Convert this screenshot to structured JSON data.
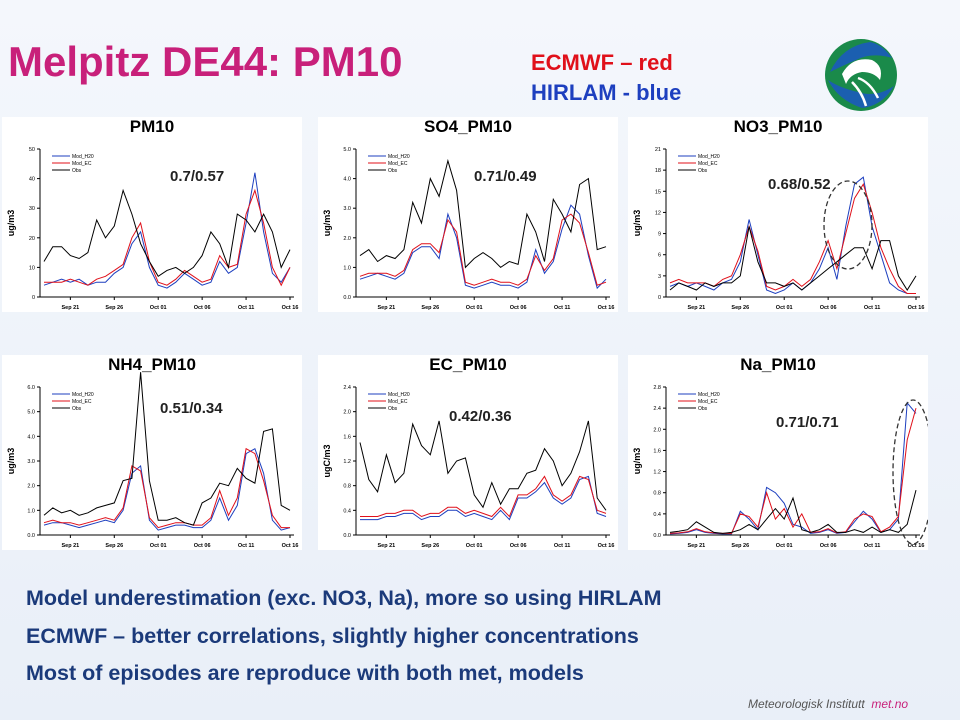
{
  "title": "Melpitz DE44: PM10",
  "legend_note": {
    "red": "ECMWF – red",
    "blue": "HIRLAM - blue"
  },
  "summary": [
    "Model underestimation (exc. NO3, Na), more so using HIRLAM",
    "ECMWF – better correlations, slightly higher concentrations",
    "Most of episodes are reproduce with both met, models"
  ],
  "footer": {
    "org": "Meteorologisk Institutt",
    "site": "met.no"
  },
  "colors": {
    "ecmwf": "#e0101a",
    "hirlam": "#1d3fbf",
    "obs": "#000000",
    "title": "#c8207a"
  },
  "chart_data": [
    {
      "type": "line",
      "title": "PM10",
      "ylabel": "ug/m3",
      "ylim": [
        0,
        50
      ],
      "yticks": [
        "0",
        "10",
        "20",
        "30",
        "40",
        "50"
      ],
      "xticks": [
        "Sep 21",
        "Sep 26",
        "Oct 01",
        "Oct 06",
        "Oct 11",
        "Oct 16"
      ],
      "corr": "0.7/0.57",
      "legend": [
        "Mod_H20",
        "Mod_EC",
        "Obs"
      ],
      "series": [
        {
          "name": "Mod_H20",
          "values": [
            4,
            5,
            6,
            5,
            6,
            4,
            5,
            5,
            8,
            10,
            18,
            22,
            10,
            4,
            3,
            5,
            8,
            6,
            4,
            5,
            12,
            8,
            10,
            25,
            42,
            22,
            8,
            5,
            10
          ]
        },
        {
          "name": "Mod_EC",
          "values": [
            5,
            5,
            5,
            6,
            5,
            4,
            6,
            7,
            9,
            11,
            20,
            25,
            12,
            5,
            4,
            6,
            9,
            7,
            5,
            6,
            14,
            10,
            11,
            28,
            36,
            25,
            10,
            4,
            10
          ]
        },
        {
          "name": "Obs",
          "values": [
            12,
            17,
            17,
            14,
            13,
            15,
            26,
            20,
            24,
            36,
            28,
            18,
            12,
            7,
            9,
            10,
            8,
            10,
            14,
            22,
            18,
            10,
            28,
            26,
            22,
            28,
            22,
            10,
            16
          ]
        }
      ]
    },
    {
      "type": "line",
      "title": "SO4_PM10",
      "ylabel": "ug/m3",
      "ylim": [
        0,
        5
      ],
      "yticks": [
        "0.0",
        "1.0",
        "2.0",
        "3.0",
        "4.0",
        "5.0"
      ],
      "xticks": [
        "Sep 21",
        "Sep 26",
        "Oct 01",
        "Oct 06",
        "Oct 11",
        "Oct 16"
      ],
      "corr": "0.71/0.49",
      "legend": [
        "Mod_H20",
        "Mod_EC",
        "Obs"
      ],
      "series": [
        {
          "name": "Mod_H20",
          "values": [
            0.6,
            0.7,
            0.8,
            0.7,
            0.6,
            0.8,
            1.5,
            1.7,
            1.7,
            1.3,
            2.8,
            2.0,
            0.4,
            0.3,
            0.4,
            0.5,
            0.4,
            0.4,
            0.3,
            0.5,
            1.6,
            0.8,
            1.2,
            2.3,
            3.1,
            2.8,
            1.4,
            0.3,
            0.6
          ]
        },
        {
          "name": "Mod_EC",
          "values": [
            0.7,
            0.8,
            0.8,
            0.8,
            0.7,
            0.9,
            1.6,
            1.8,
            1.8,
            1.5,
            2.6,
            2.2,
            0.5,
            0.4,
            0.5,
            0.6,
            0.5,
            0.5,
            0.4,
            0.6,
            1.4,
            0.9,
            1.3,
            2.6,
            2.8,
            2.5,
            1.5,
            0.4,
            0.5
          ]
        },
        {
          "name": "Obs",
          "values": [
            1.4,
            1.6,
            1.2,
            1.4,
            1.3,
            1.6,
            3.2,
            2.5,
            4.0,
            3.4,
            4.6,
            3.6,
            1.0,
            1.3,
            1.5,
            1.3,
            1.0,
            1.2,
            1.1,
            2.8,
            2.2,
            1.2,
            3.3,
            2.8,
            2.2,
            3.8,
            4.0,
            1.6,
            1.7
          ]
        }
      ]
    },
    {
      "type": "line",
      "title": "NO3_PM10",
      "ylabel": "ug/m3",
      "ylim": [
        0,
        21
      ],
      "yticks": [
        "0",
        "3",
        "6",
        "9",
        "12",
        "15",
        "18",
        "21"
      ],
      "xticks": [
        "Sep 21",
        "Sep 26",
        "Oct 01",
        "Oct 06",
        "Oct 11",
        "Oct 16"
      ],
      "corr": "0.68/0.52",
      "legend": [
        "Mod_H20",
        "Mod_EC",
        "Obs"
      ],
      "series": [
        {
          "name": "Mod_H20",
          "values": [
            1.5,
            2,
            1.5,
            2,
            1.5,
            1,
            2,
            2.5,
            5,
            11,
            6,
            1,
            0.5,
            1,
            2,
            1,
            2,
            4,
            7,
            2.5,
            10,
            16,
            17,
            10,
            6,
            2,
            1,
            0.5,
            0.5
          ]
        },
        {
          "name": "Mod_EC",
          "values": [
            2,
            2.5,
            2,
            2,
            2,
            1.5,
            2.5,
            3,
            6,
            10,
            6.5,
            1.5,
            1,
            1.5,
            2.5,
            1.5,
            2.5,
            5,
            8,
            4,
            9,
            14,
            16,
            12,
            7,
            4,
            1.5,
            0.5,
            0.5
          ]
        },
        {
          "name": "Obs",
          "values": [
            1,
            2,
            1.5,
            1,
            2,
            1.5,
            2,
            2,
            3,
            10,
            5,
            2,
            2,
            1.5,
            2,
            1,
            2,
            3,
            4,
            5,
            6,
            7,
            7,
            4,
            8,
            8,
            3,
            1,
            3
          ]
        }
      ]
    },
    {
      "type": "line",
      "title": "NH4_PM10",
      "ylabel": "ug/m3",
      "ylim": [
        0,
        6
      ],
      "yticks": [
        "0.0",
        "1.0",
        "2.0",
        "3.0",
        "4.0",
        "5.0",
        "6.0"
      ],
      "xticks": [
        "Sep 21",
        "Sep 26",
        "Oct 01",
        "Oct 06",
        "Oct 11",
        "Oct 16"
      ],
      "corr": "0.51/0.34",
      "legend": [
        "Mod_H20",
        "Mod_EC",
        "Obs"
      ],
      "series": [
        {
          "name": "Mod_H20",
          "values": [
            0.4,
            0.5,
            0.5,
            0.4,
            0.3,
            0.4,
            0.5,
            0.6,
            0.5,
            1.0,
            2.5,
            2.8,
            0.6,
            0.2,
            0.3,
            0.4,
            0.4,
            0.3,
            0.3,
            0.6,
            1.5,
            0.6,
            1.2,
            3.3,
            3.5,
            2.5,
            0.6,
            0.2,
            0.3
          ]
        },
        {
          "name": "Mod_EC",
          "values": [
            0.5,
            0.6,
            0.5,
            0.5,
            0.4,
            0.5,
            0.6,
            0.7,
            0.6,
            1.1,
            2.8,
            2.6,
            0.7,
            0.3,
            0.4,
            0.5,
            0.5,
            0.4,
            0.4,
            0.7,
            1.8,
            0.8,
            1.5,
            3.5,
            3.3,
            2.2,
            0.8,
            0.3,
            0.3
          ]
        },
        {
          "name": "Obs",
          "values": [
            0.8,
            1.1,
            0.9,
            1.0,
            0.8,
            0.9,
            1.1,
            1.2,
            1.3,
            2.2,
            2.3,
            6.6,
            2.2,
            0.6,
            0.6,
            0.7,
            0.5,
            0.4,
            1.3,
            1.5,
            2.1,
            2.0,
            2.7,
            2.3,
            2.1,
            4.2,
            4.3,
            1.2,
            1.0
          ]
        }
      ]
    },
    {
      "type": "line",
      "title": "EC_PM10",
      "ylabel": "ugC/m3",
      "ylim": [
        0,
        2.4
      ],
      "yticks": [
        "0.0",
        "0.4",
        "0.8",
        "1.2",
        "1.6",
        "2.0",
        "2.4"
      ],
      "xticks": [
        "Sep 21",
        "Sep 26",
        "Oct 01",
        "Oct 06",
        "Oct 11",
        "Oct 16"
      ],
      "corr": "0.42/0.36",
      "legend": [
        "Mod_H20",
        "Mod_EC",
        "Obs"
      ],
      "series": [
        {
          "name": "Mod_H20",
          "values": [
            0.25,
            0.25,
            0.25,
            0.3,
            0.3,
            0.35,
            0.35,
            0.25,
            0.3,
            0.3,
            0.4,
            0.4,
            0.3,
            0.35,
            0.3,
            0.25,
            0.4,
            0.25,
            0.6,
            0.6,
            0.7,
            0.85,
            0.6,
            0.5,
            0.6,
            0.9,
            0.95,
            0.35,
            0.3
          ]
        },
        {
          "name": "Mod_EC",
          "values": [
            0.3,
            0.3,
            0.3,
            0.35,
            0.35,
            0.4,
            0.4,
            0.3,
            0.35,
            0.35,
            0.45,
            0.45,
            0.35,
            0.4,
            0.35,
            0.3,
            0.45,
            0.3,
            0.65,
            0.65,
            0.75,
            0.95,
            0.65,
            0.55,
            0.65,
            0.95,
            0.9,
            0.4,
            0.35
          ]
        },
        {
          "name": "Obs",
          "values": [
            1.5,
            0.9,
            0.7,
            1.3,
            0.85,
            1.0,
            1.8,
            1.45,
            1.3,
            1.85,
            1.0,
            1.2,
            1.25,
            0.65,
            0.45,
            0.85,
            0.5,
            0.75,
            0.75,
            1.0,
            1.05,
            1.4,
            1.2,
            0.8,
            1.0,
            1.35,
            1.85,
            0.6,
            0.4
          ]
        }
      ]
    },
    {
      "type": "line",
      "title": "Na_PM10",
      "ylabel": "ug/m3",
      "ylim": [
        0,
        2.8
      ],
      "yticks": [
        "0.0",
        "0.4",
        "0.8",
        "1.2",
        "1.6",
        "2.0",
        "2.4",
        "2.8"
      ],
      "xticks": [
        "Sep 21",
        "Sep 26",
        "Oct 01",
        "Oct 06",
        "Oct 11",
        "Oct 16"
      ],
      "corr": "0.71/0.71",
      "legend": [
        "Mod_H20",
        "Mod_EC",
        "Obs"
      ],
      "series": [
        {
          "name": "Mod_H20",
          "values": [
            0.02,
            0.03,
            0.05,
            0.1,
            0.05,
            0.03,
            0.02,
            0.02,
            0.45,
            0.3,
            0.1,
            0.9,
            0.8,
            0.6,
            0.2,
            0.15,
            0.03,
            0.05,
            0.1,
            0.03,
            0.05,
            0.25,
            0.45,
            0.3,
            0.05,
            0.1,
            0.3,
            2.5,
            2.3
          ]
        },
        {
          "name": "Mod_EC",
          "values": [
            0.03,
            0.04,
            0.06,
            0.12,
            0.06,
            0.04,
            0.03,
            0.03,
            0.4,
            0.35,
            0.15,
            0.8,
            0.3,
            0.5,
            0.15,
            0.4,
            0.05,
            0.06,
            0.12,
            0.04,
            0.06,
            0.3,
            0.4,
            0.35,
            0.06,
            0.15,
            0.35,
            1.8,
            2.4
          ]
        },
        {
          "name": "Obs",
          "values": [
            0.05,
            0.07,
            0.1,
            0.25,
            0.15,
            0.05,
            0.03,
            0.05,
            0.1,
            0.2,
            0.1,
            0.3,
            0.5,
            0.3,
            0.7,
            0.1,
            0.05,
            0.1,
            0.2,
            0.05,
            0.05,
            0.1,
            0.05,
            0.15,
            0.05,
            0.1,
            0.05,
            0.2,
            0.85
          ]
        }
      ]
    }
  ]
}
